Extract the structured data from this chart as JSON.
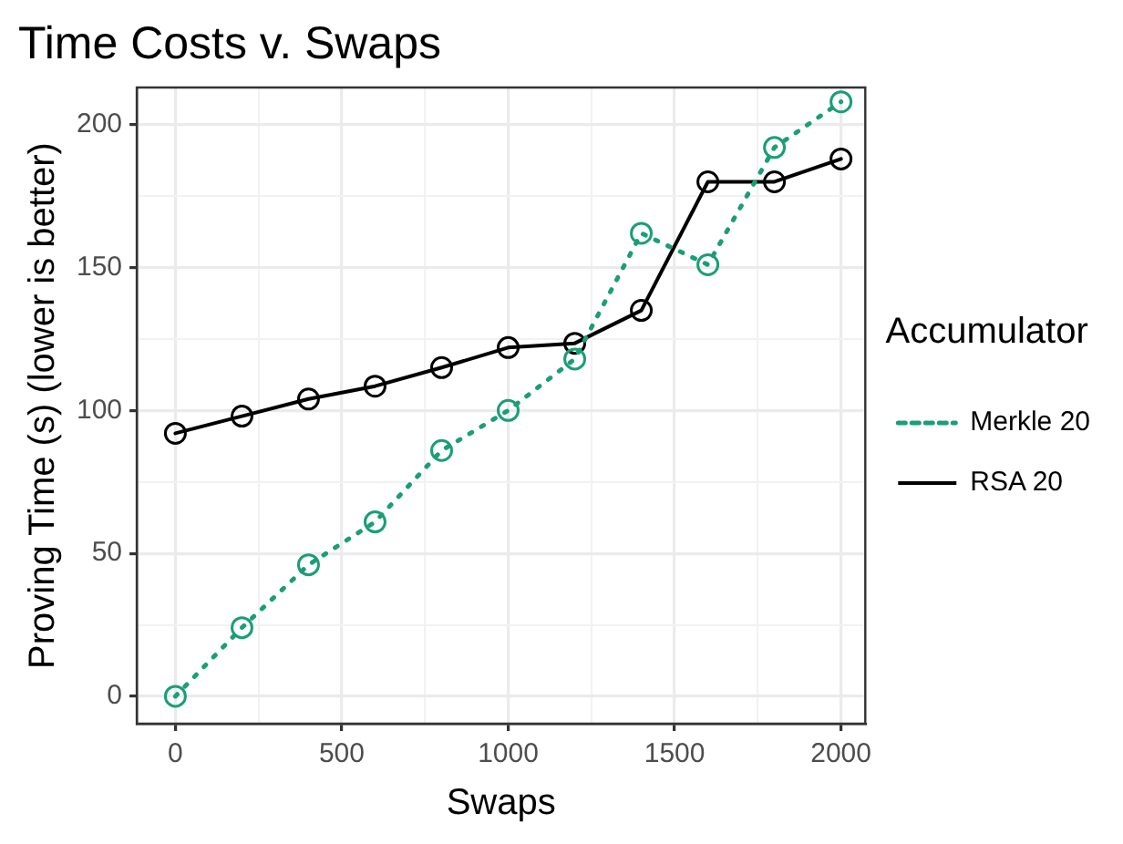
{
  "chart_data": {
    "type": "line",
    "title": "Time Costs v. Swaps",
    "xlabel": "Swaps",
    "ylabel": "Proving Time (s) (lower is better)",
    "legend_title": "Accumulator",
    "x": [
      0,
      200,
      400,
      600,
      800,
      1000,
      1200,
      1400,
      1600,
      1800,
      2000
    ],
    "series": [
      {
        "name": "Merkle 20",
        "color": "#1b9e77",
        "line_style": "dotted",
        "values": [
          0,
          24,
          46,
          61,
          86,
          100,
          118,
          162,
          151,
          192,
          208
        ]
      },
      {
        "name": "RSA 20",
        "color": "#000000",
        "line_style": "solid",
        "values": [
          92,
          98,
          104,
          108.5,
          115,
          122,
          123.5,
          135,
          180,
          180,
          188
        ]
      }
    ],
    "xlim": [
      -116,
      2073
    ],
    "xticks": [
      0,
      {
        "value": 250,
        "label": null
      },
      500,
      {
        "value": 750,
        "label": null
      },
      1000,
      {
        "value": 1250,
        "label": null
      },
      1500,
      {
        "value": 1750,
        "label": null
      },
      2000
    ],
    "ylim": [
      -9.6,
      213
    ],
    "yticks": [
      0,
      {
        "value": 25,
        "label": null
      },
      50,
      {
        "value": 75,
        "label": null
      },
      100,
      {
        "value": 125,
        "label": null
      },
      150,
      {
        "value": 175,
        "label": null
      },
      200
    ],
    "grid": true,
    "legend": "right",
    "marker": "circle"
  }
}
